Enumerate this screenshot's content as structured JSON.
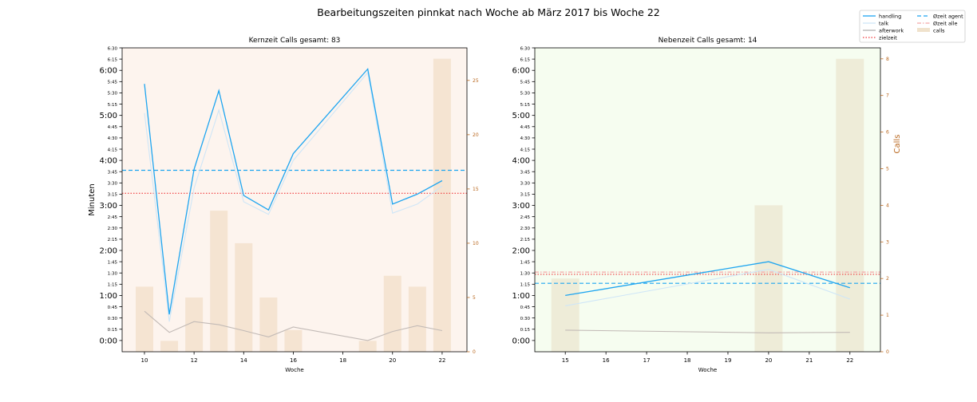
{
  "figure": {
    "title": "Bearbeitungszeiten pinnkat nach Woche ab März 2017 bis Woche 22"
  },
  "legend": {
    "items": [
      {
        "label": "handling",
        "color": "#1ea5f0",
        "style": "solid"
      },
      {
        "label": "talk",
        "color": "#cfe6f7",
        "style": "solid"
      },
      {
        "label": "afterwork",
        "color": "#b3b3b3",
        "style": "solid"
      },
      {
        "label": "zielzeit",
        "color": "#f0393c",
        "style": "dotted"
      },
      {
        "label": "Øzeit agent",
        "color": "#1ea5f0",
        "style": "dashed"
      },
      {
        "label": "Øzeit alle",
        "color": "#f4a6a8",
        "style": "dashdot"
      },
      {
        "label": "calls",
        "color": "#f0e2cc",
        "style": "patch"
      }
    ]
  },
  "chart_data": [
    {
      "type": "line",
      "title": "Kernzeit Calls gesamt: 83",
      "xlabel": "Woche",
      "ylabel": "Minuten",
      "ylabel_right": "",
      "bg": "#fdf4ee",
      "bar_color": "#f5e4d2",
      "xlim": [
        9.1,
        23.0
      ],
      "ylim": [
        -0.25,
        6.5
      ],
      "y2lim": [
        0,
        28
      ],
      "x_ticks": [
        10,
        12,
        14,
        16,
        18,
        20,
        22
      ],
      "x_tick_labels": [
        "10",
        "12",
        "14",
        "16",
        "18",
        "20",
        "22"
      ],
      "y_ticks": [
        0,
        0.25,
        0.5,
        0.75,
        1,
        1.25,
        1.5,
        1.75,
        2,
        2.25,
        2.5,
        2.75,
        3,
        3.25,
        3.5,
        3.75,
        4,
        4.25,
        4.5,
        4.75,
        5,
        5.25,
        5.5,
        5.75,
        6,
        6.25,
        6.5
      ],
      "y_tick_labels": [
        "0:00",
        "0:15",
        "0:30",
        "0:45",
        "1:00",
        "1:15",
        "1:30",
        "1:45",
        "2:00",
        "2:15",
        "2:30",
        "2:45",
        "3:00",
        "3:15",
        "3:30",
        "3:45",
        "4:00",
        "4:15",
        "4:30",
        "4:45",
        "5:00",
        "5:15",
        "5:30",
        "5:45",
        "6:00",
        "6:15",
        "6:30"
      ],
      "y2_ticks": [
        0,
        5,
        10,
        15,
        20,
        25
      ],
      "y2_tick_labels": [
        "0",
        "5",
        "10",
        "15",
        "20",
        "25"
      ],
      "x": [
        10,
        11,
        12,
        13,
        14,
        15,
        16,
        19,
        20,
        21,
        22
      ],
      "series": [
        {
          "name": "handling",
          "color": "#1ea5f0",
          "values": [
            5.7,
            0.58,
            3.8,
            5.55,
            3.22,
            2.9,
            4.15,
            6.03,
            3.03,
            3.25,
            3.55
          ]
        },
        {
          "name": "talk",
          "color": "#cfe6f7",
          "values": [
            5.05,
            0.42,
            3.38,
            5.12,
            3.08,
            2.8,
            4.0,
            5.95,
            2.83,
            3.03,
            3.43
          ]
        },
        {
          "name": "afterwork",
          "color": "#c2bab6",
          "values": [
            0.65,
            0.18,
            0.42,
            0.35,
            0.22,
            0.08,
            0.3,
            0.0,
            0.2,
            0.33,
            0.22
          ]
        }
      ],
      "bars": {
        "name": "calls",
        "x": [
          10,
          11,
          12,
          13,
          14,
          15,
          16,
          19,
          20,
          21,
          22
        ],
        "values": [
          6,
          1,
          5,
          13,
          10,
          5,
          2,
          1,
          7,
          6,
          27
        ]
      },
      "hlines": [
        {
          "name": "Øzeit agent",
          "value": 3.78,
          "color": "#1ea5f0",
          "style": "dashed"
        },
        {
          "name": "zielzeit",
          "value": 3.27,
          "color": "#f0393c",
          "style": "dotted"
        }
      ]
    },
    {
      "type": "line",
      "title": "Nebenzeit Calls gesamt: 14",
      "xlabel": "Woche",
      "ylabel": "",
      "ylabel_right": "Calls",
      "bg": "#f6fdf0",
      "bar_color": "#eeecd8",
      "xlim": [
        14.25,
        22.75
      ],
      "ylim": [
        -0.25,
        6.5
      ],
      "y2lim": [
        0,
        8.3
      ],
      "x_ticks": [
        15,
        16,
        17,
        18,
        19,
        20,
        21,
        22
      ],
      "x_tick_labels": [
        "15",
        "16",
        "17",
        "18",
        "19",
        "20",
        "21",
        "22"
      ],
      "y_ticks": [
        0,
        0.25,
        0.5,
        0.75,
        1,
        1.25,
        1.5,
        1.75,
        2,
        2.25,
        2.5,
        2.75,
        3,
        3.25,
        3.5,
        3.75,
        4,
        4.25,
        4.5,
        4.75,
        5,
        5.25,
        5.5,
        5.75,
        6,
        6.25,
        6.5
      ],
      "y_tick_labels": [
        "0:00",
        "0:15",
        "0:30",
        "0:45",
        "1:00",
        "1:15",
        "1:30",
        "1:45",
        "2:00",
        "2:15",
        "2:30",
        "2:45",
        "3:00",
        "3:15",
        "3:30",
        "3:45",
        "4:00",
        "4:15",
        "4:30",
        "4:45",
        "5:00",
        "5:15",
        "5:30",
        "5:45",
        "6:00",
        "6:15",
        "6:30"
      ],
      "y2_ticks": [
        0,
        1,
        2,
        3,
        4,
        5,
        6,
        7,
        8
      ],
      "y2_tick_labels": [
        "0",
        "1",
        "2",
        "3",
        "4",
        "5",
        "6",
        "7",
        "8"
      ],
      "x": [
        15,
        20,
        22
      ],
      "series": [
        {
          "name": "handling",
          "color": "#1ea5f0",
          "values": [
            1.0,
            1.75,
            1.17
          ]
        },
        {
          "name": "talk",
          "color": "#cfe6f7",
          "values": [
            0.77,
            1.58,
            0.92
          ]
        },
        {
          "name": "afterwork",
          "color": "#c2bab6",
          "values": [
            0.23,
            0.17,
            0.18
          ]
        }
      ],
      "bars": {
        "name": "calls",
        "x": [
          15,
          20,
          22
        ],
        "values": [
          2,
          4,
          8
        ]
      },
      "hlines": [
        {
          "name": "Øzeit agent",
          "value": 1.27,
          "color": "#1ea5f0",
          "style": "dashed"
        },
        {
          "name": "zielzeit",
          "value": 1.47,
          "color": "#f0393c",
          "style": "dotted"
        },
        {
          "name": "Øzeit alle",
          "value": 1.52,
          "color": "#f4a6a8",
          "style": "dashdot"
        }
      ]
    }
  ]
}
